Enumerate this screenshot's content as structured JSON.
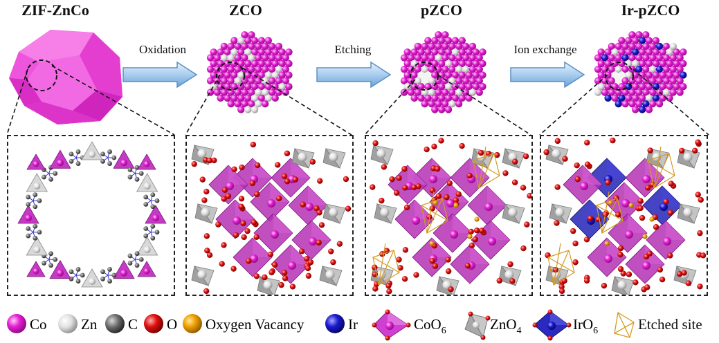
{
  "stages": [
    {
      "title": "ZIF-ZnCo"
    },
    {
      "title": "ZCO"
    },
    {
      "title": "pZCO"
    },
    {
      "title": "Ir-pZCO"
    }
  ],
  "arrows": [
    {
      "label": "Oxidation"
    },
    {
      "label": "Etching"
    },
    {
      "label": "Ion exchange"
    }
  ],
  "legend": {
    "co": "Co",
    "zn": "Zn",
    "c": "C",
    "o": "O",
    "ov": "Oxygen Vacancy",
    "ir": "Ir",
    "coo6": "CoO",
    "coo6_sub": "6",
    "zno4": "ZnO",
    "zno4_sub": "4",
    "iro6": "IrO",
    "iro6_sub": "6",
    "etched": "Etched site"
  },
  "colors": {
    "co": "#e41fd3",
    "zn": "#e8e8e8",
    "c": "#6a6a6a",
    "o": "#e01010",
    "ov": "#f0a000",
    "ir": "#1a1ad0",
    "coo6": "#c030c0",
    "zno4": "#b8b8b8",
    "iro6": "#2020b0",
    "etched": "#d49a20"
  }
}
